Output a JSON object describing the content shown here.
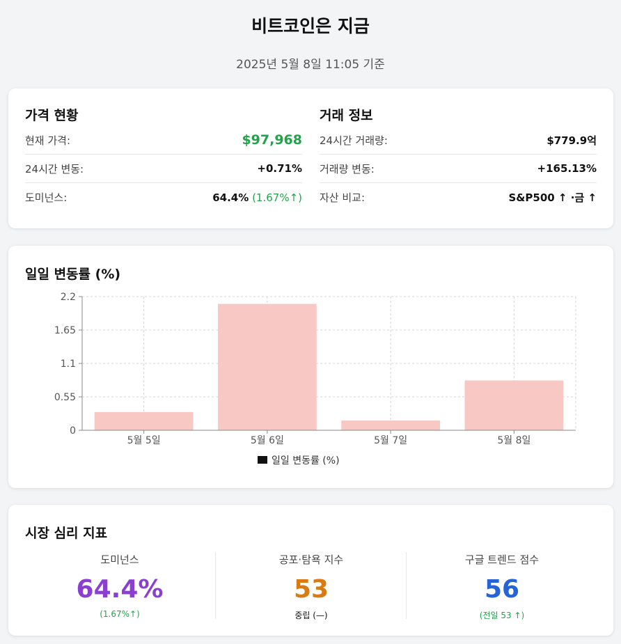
{
  "header": {
    "title": "비트코인은 지금",
    "subtitle": "2025년 5월 8일 11:05 기준"
  },
  "price_status": {
    "title": "가격 현황",
    "rows": [
      {
        "label": "현재 가격:",
        "value": "$97,968"
      },
      {
        "label": "24시간 변동:",
        "value": "+0.71%"
      },
      {
        "label": "도미넌스:",
        "value": "64.4%",
        "extra": "(1.67%↑)"
      }
    ]
  },
  "trade_info": {
    "title": "거래 정보",
    "rows": [
      {
        "label": "24시간 거래량:",
        "value": "$779.9억"
      },
      {
        "label": "거래량 변동:",
        "value": "+165.13%"
      },
      {
        "label": "자산 비교:",
        "value": "S&P500 ↑ ·금 ↑"
      }
    ]
  },
  "chart_section": {
    "title": "일일 변동률 (%)"
  },
  "chart_data": {
    "type": "bar",
    "categories": [
      "5월 5일",
      "5월 6일",
      "5월 7일",
      "5월 8일"
    ],
    "series": [
      {
        "name": "일일 변동률 (%)",
        "values": [
          0.3,
          2.08,
          0.16,
          0.82
        ]
      }
    ],
    "yticks": [
      "0",
      "0.55",
      "1.1",
      "1.65",
      "2.2"
    ],
    "ylim": [
      0,
      2.2
    ],
    "grid": true,
    "legend": "bottom",
    "bar_color": "#f8c9c4",
    "legend_swatch_color": "#111111"
  },
  "sentiment": {
    "title": "시장 심리 지표",
    "metrics": [
      {
        "label": "도미넌스",
        "value": "64.4%",
        "sub": "(1.67%↑)",
        "color": "#8b3fd1",
        "sub_color": "#22a34b"
      },
      {
        "label": "공포·탐욕 지수",
        "value": "53",
        "sub": "중립 (—)",
        "color": "#d97a12",
        "sub_color": "#111111"
      },
      {
        "label": "구글 트렌드 점수",
        "value": "56",
        "sub": "(전일 53 ↑)",
        "color": "#2563d9",
        "sub_color": "#22a34b"
      }
    ]
  }
}
